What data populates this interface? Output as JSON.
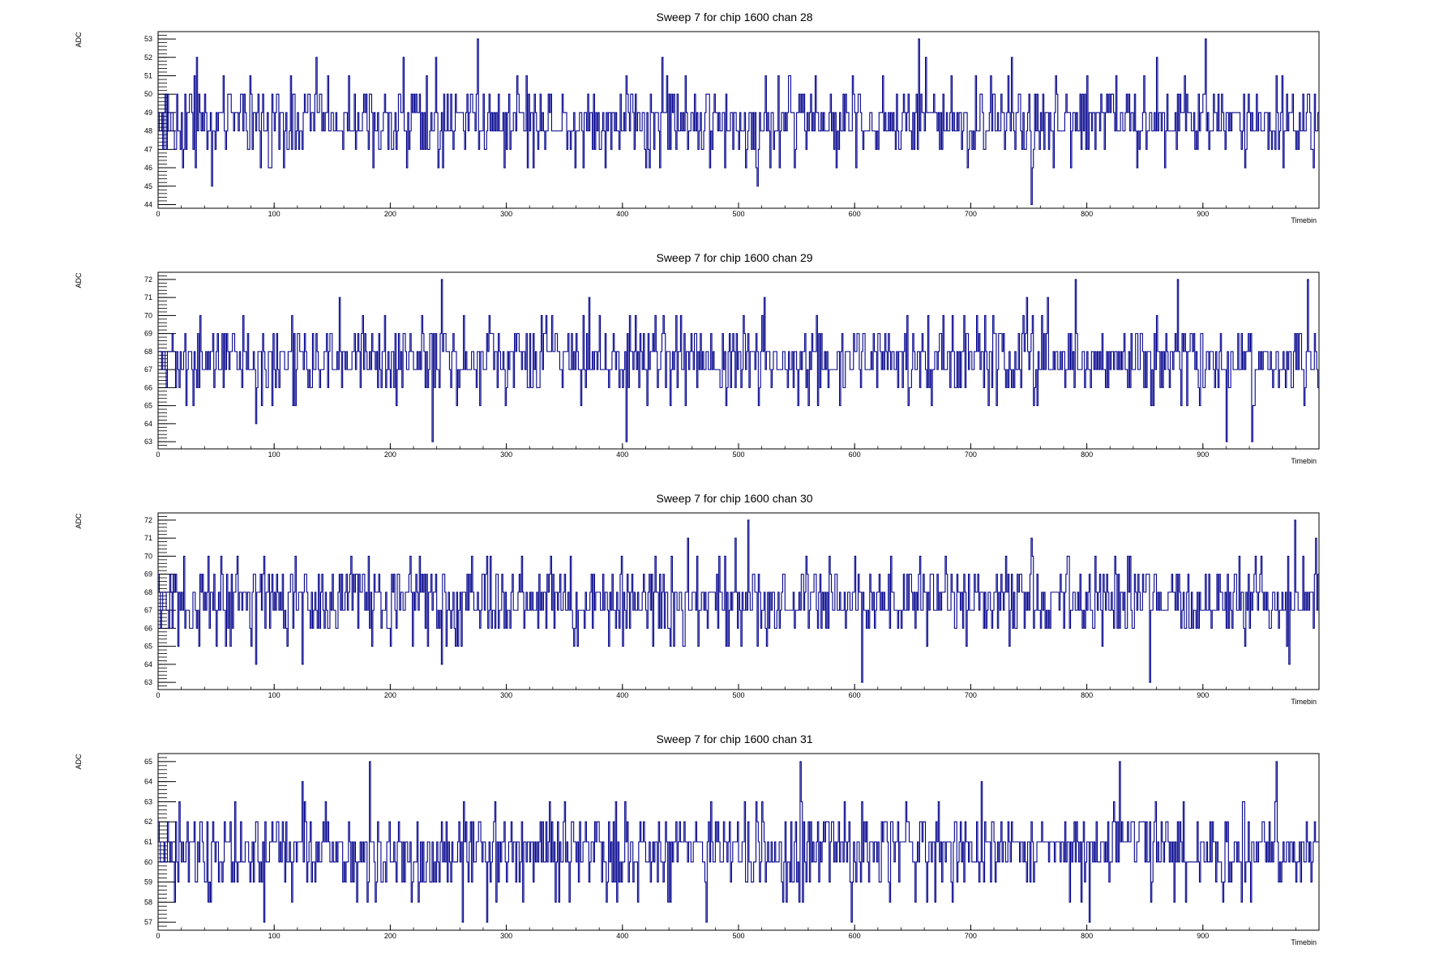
{
  "colors": {
    "trace": "#00008b",
    "frame": "#000000",
    "background": "#ffffff"
  },
  "chart_data": [
    {
      "type": "line",
      "step": true,
      "title": "Sweep 7 for chip 1600 chan 28",
      "xlabel": "Timebin",
      "ylabel": "ADC",
      "xlim": [
        0,
        1000
      ],
      "ylim": [
        43.8,
        53.4
      ],
      "xticks": [
        0,
        100,
        200,
        300,
        400,
        500,
        600,
        700,
        800,
        900
      ],
      "yticks": [
        44,
        45,
        46,
        47,
        48,
        49,
        50,
        51,
        52,
        53
      ],
      "x_range": [
        0,
        999
      ],
      "baseline": 48.6,
      "noise_levels": [
        47,
        48,
        49,
        50
      ],
      "spikes": [
        {
          "x": 33,
          "y": 52
        },
        {
          "x": 46,
          "y": 45
        },
        {
          "x": 136,
          "y": 52
        },
        {
          "x": 211,
          "y": 52
        },
        {
          "x": 239,
          "y": 52
        },
        {
          "x": 241,
          "y": 46
        },
        {
          "x": 275,
          "y": 53
        },
        {
          "x": 434,
          "y": 52
        },
        {
          "x": 516,
          "y": 45
        },
        {
          "x": 655,
          "y": 53
        },
        {
          "x": 661,
          "y": 52
        },
        {
          "x": 735,
          "y": 52
        },
        {
          "x": 752,
          "y": 44
        },
        {
          "x": 902,
          "y": 53
        },
        {
          "x": 860,
          "y": 52
        },
        {
          "x": 995,
          "y": 46
        }
      ],
      "series": [
        {
          "name": "",
          "values": []
        }
      ]
    },
    {
      "type": "line",
      "step": true,
      "title": "Sweep 7 for chip 1600 chan 29",
      "xlabel": "Timebin",
      "ylabel": "ADC",
      "xlim": [
        0,
        1000
      ],
      "ylim": [
        62.6,
        72.4
      ],
      "xticks": [
        0,
        100,
        200,
        300,
        400,
        500,
        600,
        700,
        800,
        900
      ],
      "yticks": [
        63,
        64,
        65,
        66,
        67,
        68,
        69,
        70,
        71,
        72
      ],
      "x_range": [
        0,
        999
      ],
      "baseline": 67.5,
      "noise_levels": [
        66,
        67,
        68,
        69
      ],
      "spikes": [
        {
          "x": 236,
          "y": 63
        },
        {
          "x": 244,
          "y": 72
        },
        {
          "x": 403,
          "y": 63
        },
        {
          "x": 84,
          "y": 64
        },
        {
          "x": 156,
          "y": 71
        },
        {
          "x": 371,
          "y": 71
        },
        {
          "x": 522,
          "y": 71
        },
        {
          "x": 748,
          "y": 71
        },
        {
          "x": 766,
          "y": 71
        },
        {
          "x": 790,
          "y": 72
        },
        {
          "x": 878,
          "y": 72
        },
        {
          "x": 920,
          "y": 63
        },
        {
          "x": 942,
          "y": 63
        },
        {
          "x": 990,
          "y": 72
        },
        {
          "x": 1000,
          "y": 66
        }
      ],
      "series": [
        {
          "name": "",
          "values": []
        }
      ]
    },
    {
      "type": "line",
      "step": true,
      "title": "Sweep 7 for chip 1600 chan 30",
      "xlabel": "Timebin",
      "ylabel": "ADC",
      "xlim": [
        0,
        1000
      ],
      "ylim": [
        62.6,
        72.4
      ],
      "xticks": [
        0,
        100,
        200,
        300,
        400,
        500,
        600,
        700,
        800,
        900
      ],
      "yticks": [
        63,
        64,
        65,
        66,
        67,
        68,
        69,
        70,
        71,
        72
      ],
      "x_range": [
        0,
        999
      ],
      "baseline": 67.3,
      "noise_levels": [
        66,
        67,
        68,
        69
      ],
      "spikes": [
        {
          "x": 84,
          "y": 64
        },
        {
          "x": 124,
          "y": 64
        },
        {
          "x": 244,
          "y": 64
        },
        {
          "x": 456,
          "y": 71
        },
        {
          "x": 497,
          "y": 71
        },
        {
          "x": 508,
          "y": 72
        },
        {
          "x": 606,
          "y": 63
        },
        {
          "x": 752,
          "y": 71
        },
        {
          "x": 854,
          "y": 63
        },
        {
          "x": 974,
          "y": 64
        },
        {
          "x": 979,
          "y": 72
        },
        {
          "x": 997,
          "y": 71
        }
      ],
      "series": [
        {
          "name": "",
          "values": []
        }
      ]
    },
    {
      "type": "line",
      "step": true,
      "title": "Sweep 7 for chip 1600 chan 31",
      "xlabel": "Timebin",
      "ylabel": "ADC",
      "xlim": [
        0,
        1000
      ],
      "ylim": [
        56.6,
        65.4
      ],
      "xticks": [
        0,
        100,
        200,
        300,
        400,
        500,
        600,
        700,
        800,
        900
      ],
      "yticks": [
        57,
        58,
        59,
        60,
        61,
        62,
        63,
        64,
        65
      ],
      "x_range": [
        0,
        999
      ],
      "baseline": 60.6,
      "noise_levels": [
        59,
        60,
        61,
        62
      ],
      "spikes": [
        {
          "x": 91,
          "y": 57
        },
        {
          "x": 182,
          "y": 65
        },
        {
          "x": 262,
          "y": 57
        },
        {
          "x": 283,
          "y": 57
        },
        {
          "x": 472,
          "y": 57
        },
        {
          "x": 553,
          "y": 65
        },
        {
          "x": 597,
          "y": 57
        },
        {
          "x": 802,
          "y": 57
        },
        {
          "x": 828,
          "y": 65
        },
        {
          "x": 963,
          "y": 65
        },
        {
          "x": 124,
          "y": 64
        },
        {
          "x": 709,
          "y": 64
        }
      ],
      "series": [
        {
          "name": "",
          "values": []
        }
      ]
    }
  ]
}
